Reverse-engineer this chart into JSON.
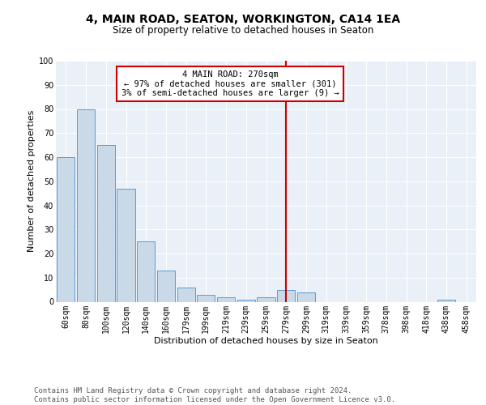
{
  "title1": "4, MAIN ROAD, SEATON, WORKINGTON, CA14 1EA",
  "title2": "Size of property relative to detached houses in Seaton",
  "xlabel": "Distribution of detached houses by size in Seaton",
  "ylabel": "Number of detached properties",
  "footer": "Contains HM Land Registry data © Crown copyright and database right 2024.\nContains public sector information licensed under the Open Government Licence v3.0.",
  "bar_labels": [
    "60sqm",
    "80sqm",
    "100sqm",
    "120sqm",
    "140sqm",
    "160sqm",
    "179sqm",
    "199sqm",
    "219sqm",
    "239sqm",
    "259sqm",
    "279sqm",
    "299sqm",
    "319sqm",
    "339sqm",
    "359sqm",
    "378sqm",
    "398sqm",
    "418sqm",
    "438sqm",
    "458sqm"
  ],
  "bar_values": [
    60,
    80,
    65,
    47,
    25,
    13,
    6,
    3,
    2,
    1,
    2,
    5,
    4,
    0,
    0,
    0,
    0,
    0,
    0,
    1,
    0
  ],
  "bar_color": "#c9d9e8",
  "bar_edgecolor": "#5b9bd5",
  "vline_x": 11.0,
  "vline_color": "#cc0000",
  "annotation_text": "4 MAIN ROAD: 270sqm\n← 97% of detached houses are smaller (301)\n3% of semi-detached houses are larger (9) →",
  "annotation_box_color": "#cc0000",
  "ylim": [
    0,
    100
  ],
  "yticks": [
    0,
    10,
    20,
    30,
    40,
    50,
    60,
    70,
    80,
    90,
    100
  ],
  "bg_color": "#eaf0f7",
  "title1_fontsize": 10,
  "title2_fontsize": 8.5,
  "xlabel_fontsize": 8,
  "ylabel_fontsize": 8,
  "tick_fontsize": 7,
  "footer_fontsize": 6.5,
  "ann_fontsize": 7.5
}
